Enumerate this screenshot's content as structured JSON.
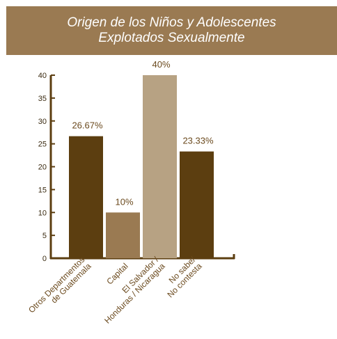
{
  "title_lines": [
    "Origen de los Niños y Adolescentes",
    "Explotados Sexualmente"
  ],
  "chart_data": {
    "type": "bar",
    "title": "Origen de los Niños y Adolescentes Explotados Sexualmente",
    "categories": [
      [
        "Otros Departmentos",
        "de Guatemala"
      ],
      [
        "Capital"
      ],
      [
        "El Salvador /",
        "Honduras / Nicaragua"
      ],
      [
        "No sabe/",
        "No contesta"
      ]
    ],
    "values": [
      26.67,
      10,
      40,
      23.33
    ],
    "value_labels": [
      "26.67%",
      "10%",
      "40%",
      "23.33%"
    ],
    "bar_colors": [
      "#5c3e10",
      "#9a7a52",
      "#b7a283",
      "#5c3e10"
    ],
    "ylim": [
      0,
      40
    ],
    "yticks": [
      0,
      5,
      10,
      15,
      20,
      25,
      30,
      35,
      40
    ],
    "axis_color": "#5c3e10",
    "label_color": "#6b4a1e",
    "grid": false
  }
}
